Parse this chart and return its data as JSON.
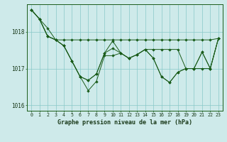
{
  "title": "Graphe pression niveau de la mer (hPa)",
  "background_color": "#ceeaea",
  "grid_color": "#88c8c8",
  "line_color": "#1a5c1a",
  "marker_color": "#1a5c1a",
  "xlim": [
    -0.5,
    23.5
  ],
  "ylim": [
    1015.85,
    1018.75
  ],
  "yticks": [
    1016,
    1017,
    1018
  ],
  "xticks": [
    0,
    1,
    2,
    3,
    4,
    5,
    6,
    7,
    8,
    9,
    10,
    11,
    12,
    13,
    14,
    15,
    16,
    17,
    18,
    19,
    20,
    21,
    22,
    23
  ],
  "series": [
    [
      1018.6,
      1018.35,
      1018.1,
      1017.78,
      1017.62,
      1017.2,
      1016.78,
      1016.4,
      1016.65,
      1017.35,
      1017.35,
      1017.42,
      1017.28,
      1017.38,
      1017.52,
      1017.28,
      1016.78,
      1016.62,
      1016.9,
      1017.0,
      1017.0,
      1017.45,
      1017.0,
      1017.82
    ],
    [
      1018.6,
      1018.35,
      1017.88,
      1017.78,
      1017.78,
      1017.78,
      1017.78,
      1017.78,
      1017.78,
      1017.78,
      1017.78,
      1017.78,
      1017.78,
      1017.78,
      1017.78,
      1017.78,
      1017.78,
      1017.78,
      1017.78,
      1017.78,
      1017.78,
      1017.78,
      1017.78,
      1017.82
    ],
    [
      1018.6,
      1018.35,
      1017.88,
      1017.78,
      1017.62,
      1017.2,
      1016.78,
      1016.68,
      1016.85,
      1017.42,
      1017.75,
      1017.42,
      1017.28,
      1017.38,
      1017.52,
      1017.52,
      1017.52,
      1017.52,
      1017.52,
      1017.0,
      1017.0,
      1017.45,
      1017.0,
      1017.82
    ],
    [
      1018.6,
      1018.35,
      1017.88,
      1017.78,
      1017.62,
      1017.2,
      1016.78,
      1016.68,
      1016.85,
      1017.42,
      1017.55,
      1017.42,
      1017.28,
      1017.38,
      1017.52,
      1017.28,
      1016.78,
      1016.62,
      1016.9,
      1017.0,
      1017.0,
      1017.0,
      1017.0,
      1017.82
    ]
  ]
}
